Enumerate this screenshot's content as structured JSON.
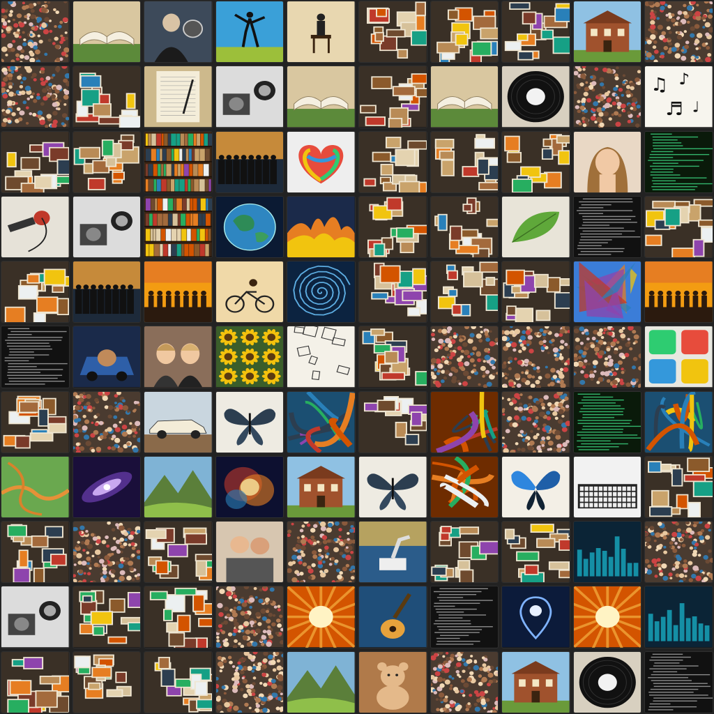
{
  "mosaic": {
    "rows": 11,
    "cols": 10,
    "tiles": [
      [
        "crowd",
        "open-book",
        "vintage-portrait",
        "silhouette-field",
        "man-chair",
        "photo-collage",
        "photo-collage",
        "vintage-objects",
        "building",
        "crowd"
      ],
      [
        "crowd",
        "photo-collage",
        "notebook-pen",
        "vintage-camera",
        "open-book",
        "photo-collage",
        "open-book",
        "vinyl-record",
        "crowd",
        "music-notes"
      ],
      [
        "photo-collage",
        "photo-collage",
        "bookshelf",
        "business-group",
        "rainbow-heart",
        "photo-collage",
        "vintage-objects",
        "photo-collage",
        "portrait-woman",
        "green-code"
      ],
      [
        "cables",
        "camera-gear",
        "bookshelf",
        "earth",
        "fire-landscape",
        "photo-collage",
        "photo-collage",
        "leaf",
        "code-text",
        "photo-collage"
      ],
      [
        "photo-collage",
        "business-group",
        "sunset-silhouette",
        "bicycle",
        "spiral",
        "vintage-objects",
        "photo-collage",
        "photo-collage",
        "art-collage",
        "sunset-silhouette"
      ],
      [
        "code-text",
        "car-portrait",
        "two-girls",
        "sunflowers",
        "sketch-objects",
        "photo-collage",
        "crowd",
        "crowd",
        "crowd",
        "app-icons"
      ],
      [
        "photo-collage",
        "crowd",
        "vintage-car",
        "butterfly",
        "abstract-art",
        "photo-collage",
        "abstract-art",
        "crowd",
        "green-code",
        "abstract-art"
      ],
      [
        "landscape-map",
        "galaxy",
        "mountains",
        "nebula",
        "building",
        "butterfly",
        "abstract-art",
        "butterfly",
        "keyboard",
        "vintage-objects"
      ],
      [
        "photo-collage",
        "crowd",
        "photo-collage",
        "couple",
        "crowd",
        "robot-arm",
        "photo-collage",
        "photo-collage",
        "data-chart",
        "crowd"
      ],
      [
        "vintage-camera",
        "photo-collage",
        "vintage-objects",
        "crowd",
        "sunburst",
        "guitar",
        "code-text",
        "location-pin",
        "sunburst",
        "data-chart"
      ],
      [
        "photo-collage",
        "photo-collage",
        "photo-collage",
        "crowd",
        "mountains",
        "teddy-bear",
        "crowd",
        "building",
        "vinyl-record",
        "code-text"
      ]
    ]
  },
  "colors": {
    "background": "#1c1c1c",
    "gap": "#222222"
  }
}
